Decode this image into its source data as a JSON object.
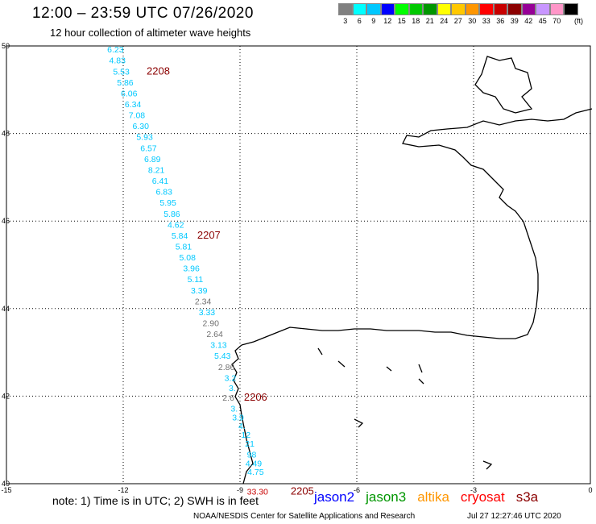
{
  "header": {
    "title": "12:00 – 23:59 UTC 07/26/2020",
    "subtitle": "12 hour collection of altimeter wave heights"
  },
  "colorbar": {
    "unit": "(ft)",
    "bins": [
      {
        "label": "3",
        "color": "#808080"
      },
      {
        "label": "6",
        "color": "#00ffff"
      },
      {
        "label": "9",
        "color": "#00c8ff"
      },
      {
        "label": "12",
        "color": "#0000ff"
      },
      {
        "label": "15",
        "color": "#00ff00"
      },
      {
        "label": "18",
        "color": "#00c800"
      },
      {
        "label": "21",
        "color": "#009600"
      },
      {
        "label": "24",
        "color": "#ffff00"
      },
      {
        "label": "27",
        "color": "#ffc800"
      },
      {
        "label": "30",
        "color": "#ff9600"
      },
      {
        "label": "33",
        "color": "#ff0000"
      },
      {
        "label": "36",
        "color": "#c80000"
      },
      {
        "label": "39",
        "color": "#8b0000"
      },
      {
        "label": "42",
        "color": "#960096"
      },
      {
        "label": "45",
        "color": "#c896ff"
      },
      {
        "label": "70",
        "color": "#ff96c8"
      },
      {
        "label": "",
        "color": "#000000"
      }
    ]
  },
  "map": {
    "lon_range": [
      -15,
      0
    ],
    "lat_range": [
      40,
      50
    ],
    "lon_ticks": [
      "-15",
      "-12",
      "-9",
      "-6",
      "-3",
      "0"
    ],
    "lat_ticks": [
      "50",
      "48",
      "46",
      "44",
      "42",
      "40"
    ],
    "grid": true,
    "track": [
      {
        "value": "6.23",
        "lon": -12.2,
        "lat": 49.85,
        "color": "#00c8ff"
      },
      {
        "value": "4.83",
        "lon": -12.15,
        "lat": 49.6,
        "color": "#00c8ff"
      },
      {
        "value": "5.53",
        "lon": -12.05,
        "lat": 49.35,
        "color": "#00c8ff"
      },
      {
        "value": "5.86",
        "lon": -11.95,
        "lat": 49.1,
        "color": "#00c8ff"
      },
      {
        "value": "6.06",
        "lon": -11.85,
        "lat": 48.85,
        "color": "#00c8ff"
      },
      {
        "value": "6.34",
        "lon": -11.75,
        "lat": 48.6,
        "color": "#00c8ff"
      },
      {
        "value": "7.08",
        "lon": -11.65,
        "lat": 48.35,
        "color": "#00c8ff"
      },
      {
        "value": "6.30",
        "lon": -11.55,
        "lat": 48.1,
        "color": "#00c8ff"
      },
      {
        "value": "5.93",
        "lon": -11.45,
        "lat": 47.85,
        "color": "#00c8ff"
      },
      {
        "value": "6.57",
        "lon": -11.35,
        "lat": 47.6,
        "color": "#00c8ff"
      },
      {
        "value": "6.89",
        "lon": -11.25,
        "lat": 47.35,
        "color": "#00c8ff"
      },
      {
        "value": "8.21",
        "lon": -11.15,
        "lat": 47.1,
        "color": "#00c8ff"
      },
      {
        "value": "6.41",
        "lon": -11.05,
        "lat": 46.85,
        "color": "#00c8ff"
      },
      {
        "value": "6.83",
        "lon": -10.95,
        "lat": 46.6,
        "color": "#00c8ff"
      },
      {
        "value": "5.95",
        "lon": -10.85,
        "lat": 46.35,
        "color": "#00c8ff"
      },
      {
        "value": "5.86",
        "lon": -10.75,
        "lat": 46.1,
        "color": "#00c8ff"
      },
      {
        "value": "4.62",
        "lon": -10.65,
        "lat": 45.85,
        "color": "#00c8ff"
      },
      {
        "value": "5.84",
        "lon": -10.55,
        "lat": 45.6,
        "color": "#00c8ff"
      },
      {
        "value": "5.81",
        "lon": -10.45,
        "lat": 45.35,
        "color": "#00c8ff"
      },
      {
        "value": "5.08",
        "lon": -10.35,
        "lat": 45.1,
        "color": "#00c8ff"
      },
      {
        "value": "3.96",
        "lon": -10.25,
        "lat": 44.85,
        "color": "#00c8ff"
      },
      {
        "value": "5.11",
        "lon": -10.15,
        "lat": 44.6,
        "color": "#00c8ff"
      },
      {
        "value": "3.39",
        "lon": -10.05,
        "lat": 44.35,
        "color": "#00c8ff"
      },
      {
        "value": "2.34",
        "lon": -9.95,
        "lat": 44.1,
        "color": "#707070"
      },
      {
        "value": "3.33",
        "lon": -9.85,
        "lat": 43.85,
        "color": "#00c8ff"
      },
      {
        "value": "2.90",
        "lon": -9.75,
        "lat": 43.6,
        "color": "#707070"
      },
      {
        "value": "2.64",
        "lon": -9.65,
        "lat": 43.35,
        "color": "#707070"
      },
      {
        "value": "3.13",
        "lon": -9.55,
        "lat": 43.1,
        "color": "#00c8ff"
      },
      {
        "value": "5.43",
        "lon": -9.45,
        "lat": 42.85,
        "color": "#00c8ff"
      },
      {
        "value": "2.86",
        "lon": -9.35,
        "lat": 42.6,
        "color": "#707070"
      },
      {
        "value": "3.2",
        "lon": -9.25,
        "lat": 42.35,
        "color": "#00c8ff"
      },
      {
        "value": "3.",
        "lon": -9.2,
        "lat": 42.12,
        "color": "#00c8ff"
      },
      {
        "value": "2.6",
        "lon": -9.3,
        "lat": 41.9,
        "color": "#707070"
      },
      {
        "value": "3.",
        "lon": -9.15,
        "lat": 41.65,
        "color": "#00c8ff"
      },
      {
        "value": "3.9",
        "lon": -9.05,
        "lat": 41.45,
        "color": "#00c8ff"
      },
      {
        "value": "4.",
        "lon": -8.95,
        "lat": 41.25,
        "color": "#00c8ff"
      },
      {
        "value": "12",
        "lon": -8.85,
        "lat": 41.05,
        "color": "#00c8ff"
      },
      {
        "value": "21",
        "lon": -8.75,
        "lat": 40.85,
        "color": "#00c8ff"
      },
      {
        "value": "98",
        "lon": -8.7,
        "lat": 40.6,
        "color": "#00c8ff"
      },
      {
        "value": "4.49",
        "lon": -8.65,
        "lat": 40.4,
        "color": "#00c8ff"
      },
      {
        "value": "4.75",
        "lon": -8.6,
        "lat": 40.2,
        "color": "#00c8ff"
      },
      {
        "value": "33.30",
        "lon": -8.55,
        "lat": 39.75,
        "color": "#c80000"
      }
    ],
    "time_labels": [
      {
        "text": "2208",
        "lon": -11.1,
        "lat": 49.35
      },
      {
        "text": "2207",
        "lon": -9.8,
        "lat": 45.6
      },
      {
        "text": "2206",
        "lon": -8.6,
        "lat": 41.9
      },
      {
        "text": "2205",
        "lon": -7.4,
        "lat": 39.75
      }
    ]
  },
  "footer": {
    "note": "note: 1) Time is in UTC; 2) SWH is in feet",
    "legend": [
      {
        "name": "jason2",
        "color": "#0000ff"
      },
      {
        "name": "jason3",
        "color": "#009600"
      },
      {
        "name": "altika",
        "color": "#ff9600"
      },
      {
        "name": "cryosat",
        "color": "#ff0000"
      },
      {
        "name": "s3a",
        "color": "#8b0000"
      }
    ],
    "credit": "NOAA/NESDIS Center for Satellite Applications and Research",
    "timestamp": "Jul 27 12:27:46 UTC 2020"
  }
}
